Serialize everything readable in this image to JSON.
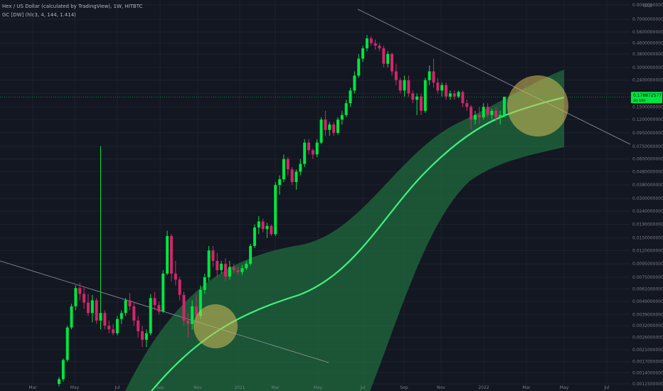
{
  "legend": {
    "title": "Hex / US Dollar (calculated by TradingView), 1W, HITBTC",
    "indicator": "GC [DW] (hlc3, 4, 144, 1.414)"
  },
  "colors": {
    "background": "#131722",
    "grid": "#1e222d",
    "up": "#00e640",
    "down": "#d1276b",
    "curve": "#3ff27f",
    "band": "#1f6b3e",
    "circle": "#d6c05a",
    "trendline": "#9598a1",
    "price_tag": "#00e640"
  },
  "chart_data": {
    "type": "candlestick",
    "y_scale": "log",
    "y_unit": "USD",
    "y_ticks": [
      "0.90000000000",
      "0.70000000000",
      "0.56000000000",
      "0.46000000000",
      "0.38000000000",
      "0.30000000000",
      "0.24000000000",
      "0.19000000000",
      "0.15000000000",
      "0.12000000000",
      "0.09500000000",
      "0.07500000000",
      "0.06000000000",
      "0.04800000000",
      "0.03800000000",
      "0.03000000000",
      "0.02400000000",
      "0.01900000000",
      "0.01500000000",
      "0.01200000000",
      "0.00950000000",
      "0.00750000000",
      "0.00610000000",
      "0.00490000000",
      "0.00390000000",
      "0.00320000000",
      "0.00260000000",
      "0.00210000000",
      "0.00170000000",
      "0.00140000000",
      "0.00115000000"
    ],
    "x_ticks": [
      "Mar",
      "May",
      "Jul",
      "Sep",
      "Nov",
      "2021",
      "Mar",
      "May",
      "Jul",
      "Sep",
      "Nov",
      "2022",
      "Mar",
      "May",
      "Jul"
    ],
    "price_label": "0.178872577",
    "price_label_sub": "2d 10h",
    "candles": [
      {
        "o": 0.00115,
        "h": 0.0013,
        "l": 0.0011,
        "c": 0.00125
      },
      {
        "o": 0.00125,
        "h": 0.0018,
        "l": 0.0012,
        "c": 0.00175
      },
      {
        "o": 0.00175,
        "h": 0.0032,
        "l": 0.0017,
        "c": 0.0031
      },
      {
        "o": 0.0031,
        "h": 0.0047,
        "l": 0.003,
        "c": 0.0045
      },
      {
        "o": 0.0045,
        "h": 0.0065,
        "l": 0.0042,
        "c": 0.0062
      },
      {
        "o": 0.0062,
        "h": 0.0068,
        "l": 0.005,
        "c": 0.0056
      },
      {
        "o": 0.0056,
        "h": 0.0064,
        "l": 0.0043,
        "c": 0.0048
      },
      {
        "o": 0.0048,
        "h": 0.0056,
        "l": 0.0038,
        "c": 0.004
      },
      {
        "o": 0.004,
        "h": 0.0055,
        "l": 0.0034,
        "c": 0.005
      },
      {
        "o": 0.005,
        "h": 0.0052,
        "l": 0.0033,
        "c": 0.0035
      },
      {
        "o": 0.0035,
        "h": 0.075,
        "l": 0.003,
        "c": 0.004
      },
      {
        "o": 0.004,
        "h": 0.0042,
        "l": 0.003,
        "c": 0.0032
      },
      {
        "o": 0.0032,
        "h": 0.0035,
        "l": 0.0028,
        "c": 0.003
      },
      {
        "o": 0.003,
        "h": 0.0033,
        "l": 0.0027,
        "c": 0.0028
      },
      {
        "o": 0.0028,
        "h": 0.0038,
        "l": 0.0027,
        "c": 0.0036
      },
      {
        "o": 0.0036,
        "h": 0.0042,
        "l": 0.0033,
        "c": 0.004
      },
      {
        "o": 0.004,
        "h": 0.0052,
        "l": 0.0038,
        "c": 0.005
      },
      {
        "o": 0.005,
        "h": 0.0057,
        "l": 0.0042,
        "c": 0.0045
      },
      {
        "o": 0.0045,
        "h": 0.0048,
        "l": 0.0032,
        "c": 0.0035
      },
      {
        "o": 0.0035,
        "h": 0.0038,
        "l": 0.0026,
        "c": 0.0029
      },
      {
        "o": 0.0029,
        "h": 0.0032,
        "l": 0.0022,
        "c": 0.0025
      },
      {
        "o": 0.0025,
        "h": 0.003,
        "l": 0.0022,
        "c": 0.0028
      },
      {
        "o": 0.0028,
        "h": 0.0056,
        "l": 0.0027,
        "c": 0.0052
      },
      {
        "o": 0.0052,
        "h": 0.0058,
        "l": 0.0042,
        "c": 0.0046
      },
      {
        "o": 0.0046,
        "h": 0.0049,
        "l": 0.0039,
        "c": 0.0041
      },
      {
        "o": 0.0041,
        "h": 0.0085,
        "l": 0.004,
        "c": 0.008
      },
      {
        "o": 0.008,
        "h": 0.017,
        "l": 0.0078,
        "c": 0.0155
      },
      {
        "o": 0.0155,
        "h": 0.016,
        "l": 0.007,
        "c": 0.008
      },
      {
        "o": 0.008,
        "h": 0.01,
        "l": 0.0065,
        "c": 0.0072
      },
      {
        "o": 0.0072,
        "h": 0.0075,
        "l": 0.005,
        "c": 0.0055
      },
      {
        "o": 0.0055,
        "h": 0.0058,
        "l": 0.0032,
        "c": 0.0035
      },
      {
        "o": 0.0035,
        "h": 0.004,
        "l": 0.0026,
        "c": 0.0033
      },
      {
        "o": 0.0033,
        "h": 0.005,
        "l": 0.003,
        "c": 0.0045
      },
      {
        "o": 0.0045,
        "h": 0.0055,
        "l": 0.0035,
        "c": 0.0038
      },
      {
        "o": 0.0038,
        "h": 0.0065,
        "l": 0.0036,
        "c": 0.006
      },
      {
        "o": 0.006,
        "h": 0.008,
        "l": 0.0056,
        "c": 0.0075
      },
      {
        "o": 0.0075,
        "h": 0.013,
        "l": 0.007,
        "c": 0.012
      },
      {
        "o": 0.012,
        "h": 0.013,
        "l": 0.009,
        "c": 0.01
      },
      {
        "o": 0.01,
        "h": 0.0115,
        "l": 0.0075,
        "c": 0.0085
      },
      {
        "o": 0.0085,
        "h": 0.01,
        "l": 0.008,
        "c": 0.0095
      },
      {
        "o": 0.0095,
        "h": 0.0105,
        "l": 0.007,
        "c": 0.0076
      },
      {
        "o": 0.0076,
        "h": 0.01,
        "l": 0.0072,
        "c": 0.009
      },
      {
        "o": 0.009,
        "h": 0.0095,
        "l": 0.008,
        "c": 0.0085
      },
      {
        "o": 0.0085,
        "h": 0.009,
        "l": 0.0078,
        "c": 0.0082
      },
      {
        "o": 0.0082,
        "h": 0.0093,
        "l": 0.0078,
        "c": 0.0088
      },
      {
        "o": 0.0088,
        "h": 0.01,
        "l": 0.0085,
        "c": 0.0095
      },
      {
        "o": 0.0095,
        "h": 0.0135,
        "l": 0.0092,
        "c": 0.013
      },
      {
        "o": 0.013,
        "h": 0.019,
        "l": 0.0125,
        "c": 0.018
      },
      {
        "o": 0.018,
        "h": 0.022,
        "l": 0.016,
        "c": 0.02
      },
      {
        "o": 0.02,
        "h": 0.021,
        "l": 0.0165,
        "c": 0.0175
      },
      {
        "o": 0.0175,
        "h": 0.0195,
        "l": 0.015,
        "c": 0.0185
      },
      {
        "o": 0.0185,
        "h": 0.019,
        "l": 0.0155,
        "c": 0.016
      },
      {
        "o": 0.016,
        "h": 0.04,
        "l": 0.0155,
        "c": 0.038
      },
      {
        "o": 0.038,
        "h": 0.045,
        "l": 0.032,
        "c": 0.042
      },
      {
        "o": 0.042,
        "h": 0.065,
        "l": 0.04,
        "c": 0.06
      },
      {
        "o": 0.06,
        "h": 0.062,
        "l": 0.045,
        "c": 0.05
      },
      {
        "o": 0.05,
        "h": 0.052,
        "l": 0.038,
        "c": 0.04
      },
      {
        "o": 0.04,
        "h": 0.05,
        "l": 0.035,
        "c": 0.048
      },
      {
        "o": 0.048,
        "h": 0.06,
        "l": 0.045,
        "c": 0.055
      },
      {
        "o": 0.055,
        "h": 0.085,
        "l": 0.052,
        "c": 0.08
      },
      {
        "o": 0.08,
        "h": 0.085,
        "l": 0.065,
        "c": 0.07
      },
      {
        "o": 0.07,
        "h": 0.072,
        "l": 0.06,
        "c": 0.065
      },
      {
        "o": 0.065,
        "h": 0.085,
        "l": 0.062,
        "c": 0.08
      },
      {
        "o": 0.08,
        "h": 0.125,
        "l": 0.078,
        "c": 0.12
      },
      {
        "o": 0.12,
        "h": 0.14,
        "l": 0.09,
        "c": 0.1
      },
      {
        "o": 0.1,
        "h": 0.115,
        "l": 0.09,
        "c": 0.11
      },
      {
        "o": 0.11,
        "h": 0.115,
        "l": 0.09,
        "c": 0.095
      },
      {
        "o": 0.095,
        "h": 0.125,
        "l": 0.092,
        "c": 0.12
      },
      {
        "o": 0.12,
        "h": 0.14,
        "l": 0.11,
        "c": 0.13
      },
      {
        "o": 0.13,
        "h": 0.17,
        "l": 0.125,
        "c": 0.16
      },
      {
        "o": 0.16,
        "h": 0.21,
        "l": 0.15,
        "c": 0.2
      },
      {
        "o": 0.2,
        "h": 0.28,
        "l": 0.19,
        "c": 0.26
      },
      {
        "o": 0.26,
        "h": 0.38,
        "l": 0.25,
        "c": 0.35
      },
      {
        "o": 0.35,
        "h": 0.44,
        "l": 0.33,
        "c": 0.42
      },
      {
        "o": 0.42,
        "h": 0.53,
        "l": 0.4,
        "c": 0.5
      },
      {
        "o": 0.5,
        "h": 0.52,
        "l": 0.44,
        "c": 0.46
      },
      {
        "o": 0.46,
        "h": 0.49,
        "l": 0.41,
        "c": 0.44
      },
      {
        "o": 0.44,
        "h": 0.46,
        "l": 0.4,
        "c": 0.42
      },
      {
        "o": 0.42,
        "h": 0.44,
        "l": 0.3,
        "c": 0.32
      },
      {
        "o": 0.32,
        "h": 0.4,
        "l": 0.3,
        "c": 0.38
      },
      {
        "o": 0.38,
        "h": 0.39,
        "l": 0.26,
        "c": 0.28
      },
      {
        "o": 0.28,
        "h": 0.32,
        "l": 0.22,
        "c": 0.24
      },
      {
        "o": 0.24,
        "h": 0.25,
        "l": 0.19,
        "c": 0.2
      },
      {
        "o": 0.2,
        "h": 0.26,
        "l": 0.18,
        "c": 0.24
      },
      {
        "o": 0.24,
        "h": 0.26,
        "l": 0.18,
        "c": 0.19
      },
      {
        "o": 0.19,
        "h": 0.2,
        "l": 0.16,
        "c": 0.17
      },
      {
        "o": 0.17,
        "h": 0.19,
        "l": 0.13,
        "c": 0.18
      },
      {
        "o": 0.18,
        "h": 0.19,
        "l": 0.13,
        "c": 0.14
      },
      {
        "o": 0.14,
        "h": 0.25,
        "l": 0.135,
        "c": 0.24
      },
      {
        "o": 0.24,
        "h": 0.31,
        "l": 0.22,
        "c": 0.28
      },
      {
        "o": 0.28,
        "h": 0.35,
        "l": 0.21,
        "c": 0.23
      },
      {
        "o": 0.23,
        "h": 0.25,
        "l": 0.19,
        "c": 0.2
      },
      {
        "o": 0.2,
        "h": 0.23,
        "l": 0.18,
        "c": 0.22
      },
      {
        "o": 0.22,
        "h": 0.23,
        "l": 0.17,
        "c": 0.18
      },
      {
        "o": 0.18,
        "h": 0.2,
        "l": 0.17,
        "c": 0.19
      },
      {
        "o": 0.19,
        "h": 0.2,
        "l": 0.17,
        "c": 0.18
      },
      {
        "o": 0.18,
        "h": 0.2,
        "l": 0.175,
        "c": 0.195
      },
      {
        "o": 0.195,
        "h": 0.2,
        "l": 0.15,
        "c": 0.16
      },
      {
        "o": 0.16,
        "h": 0.17,
        "l": 0.14,
        "c": 0.15
      },
      {
        "o": 0.15,
        "h": 0.155,
        "l": 0.1,
        "c": 0.12
      },
      {
        "o": 0.12,
        "h": 0.14,
        "l": 0.11,
        "c": 0.13
      },
      {
        "o": 0.13,
        "h": 0.15,
        "l": 0.11,
        "c": 0.125
      },
      {
        "o": 0.125,
        "h": 0.16,
        "l": 0.12,
        "c": 0.15
      },
      {
        "o": 0.15,
        "h": 0.16,
        "l": 0.125,
        "c": 0.13
      },
      {
        "o": 0.13,
        "h": 0.145,
        "l": 0.12,
        "c": 0.14
      },
      {
        "o": 0.14,
        "h": 0.15,
        "l": 0.115,
        "c": 0.125
      },
      {
        "o": 0.125,
        "h": 0.14,
        "l": 0.11,
        "c": 0.13
      },
      {
        "o": 0.13,
        "h": 0.18,
        "l": 0.125,
        "c": 0.179
      }
    ]
  }
}
